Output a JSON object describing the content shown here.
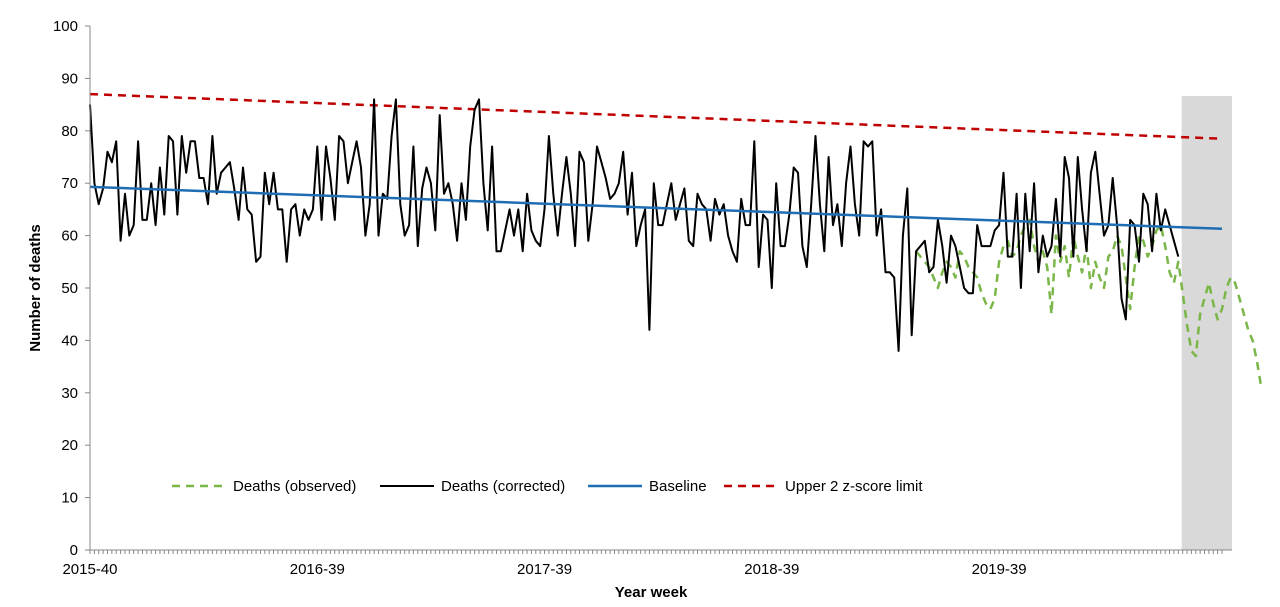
{
  "chart_data": {
    "type": "line",
    "title": "",
    "xlabel": "Year week",
    "ylabel": "Number of deaths",
    "ylim": [
      0,
      100
    ],
    "yticks": [
      0,
      10,
      20,
      30,
      40,
      50,
      60,
      70,
      80,
      90,
      100
    ],
    "xlim": [
      0,
      259
    ],
    "x_tick_labels": [
      {
        "index": 0,
        "label": "2015-40"
      },
      {
        "index": 52,
        "label": "2016-39"
      },
      {
        "index": 104,
        "label": "2017-39"
      },
      {
        "index": 156,
        "label": "2018-39"
      },
      {
        "index": 208,
        "label": "2019-39"
      }
    ],
    "grid": false,
    "legend_position": "bottom-left",
    "shaded_region": {
      "from_index": 250,
      "to_index": 259,
      "color": "#d9d9d9"
    },
    "colors": {
      "observed": "#7ab648",
      "corrected": "#000000",
      "baseline": "#1f6eb4",
      "upper": "#c00000",
      "shade": "#d9d9d9"
    },
    "series": [
      {
        "name": "Deaths (observed)",
        "style": "dashed",
        "x_start": 189,
        "values": [
          57,
          56,
          55,
          54,
          52,
          50,
          53,
          55,
          54,
          52,
          57,
          56,
          54,
          53,
          52,
          49,
          47,
          46,
          48,
          55,
          58,
          59,
          56,
          57,
          60,
          62,
          63,
          58,
          55,
          57,
          54,
          45,
          60,
          55,
          58,
          52,
          60,
          56,
          53,
          58,
          50,
          55,
          52,
          50,
          56,
          57,
          60,
          58,
          52,
          46,
          54,
          60,
          59,
          56,
          58,
          61,
          62,
          58,
          53,
          51,
          55,
          49,
          43,
          38,
          37,
          45,
          48,
          51,
          47,
          44,
          46,
          50,
          52,
          51,
          48,
          45,
          42,
          40,
          36,
          31
        ]
      },
      {
        "name": "Deaths (corrected)",
        "style": "solid",
        "x_start": 0,
        "values": [
          85,
          70,
          66,
          69,
          76,
          74,
          78,
          59,
          68,
          60,
          62,
          78,
          63,
          63,
          70,
          62,
          73,
          64,
          79,
          78,
          64,
          79,
          72,
          78,
          78,
          71,
          71,
          66,
          79,
          68,
          72,
          73,
          74,
          69,
          63,
          73,
          65,
          64,
          55,
          56,
          72,
          66,
          72,
          65,
          65,
          55,
          65,
          66,
          60,
          65,
          63,
          65,
          77,
          63,
          77,
          71,
          63,
          79,
          78,
          70,
          74,
          78,
          73,
          60,
          66,
          86,
          60,
          68,
          67,
          79,
          86,
          66,
          60,
          62,
          77,
          58,
          69,
          73,
          70,
          61,
          83,
          68,
          70,
          66,
          59,
          70,
          63,
          77,
          84,
          86,
          70,
          61,
          77,
          57,
          57,
          61,
          65,
          60,
          65,
          57,
          68,
          61,
          59,
          58,
          65,
          79,
          68,
          60,
          68,
          75,
          68,
          58,
          76,
          74,
          59,
          66,
          77,
          74,
          71,
          67,
          68,
          70,
          76,
          64,
          72,
          58,
          62,
          65,
          42,
          70,
          62,
          62,
          66,
          70,
          63,
          66,
          69,
          59,
          58,
          68,
          66,
          65,
          59,
          67,
          64,
          66,
          60,
          57,
          55,
          67,
          62,
          62,
          78,
          54,
          64,
          63,
          50,
          70,
          58,
          58,
          64,
          73,
          72,
          58,
          54,
          66,
          79,
          66,
          57,
          75,
          62,
          66,
          58,
          70,
          77,
          66,
          60,
          78,
          77,
          78,
          60,
          65,
          53,
          53,
          52,
          38,
          60,
          69,
          41,
          57,
          58,
          59,
          53,
          54,
          63,
          58,
          51,
          60,
          58,
          54,
          50,
          49,
          49,
          62,
          58,
          58,
          58,
          61,
          62,
          72,
          56,
          56,
          68,
          50,
          68,
          57,
          70,
          53,
          60,
          56,
          58,
          67,
          56,
          75,
          71,
          56,
          75,
          65,
          57,
          72,
          76,
          68,
          60,
          62,
          71,
          62,
          48,
          44,
          63,
          62,
          55,
          68,
          66,
          57,
          68,
          61,
          65,
          62,
          59,
          56
        ]
      },
      {
        "name": "Baseline",
        "style": "solid",
        "start": 69.3,
        "end": 61.3
      },
      {
        "name": "Upper 2 z-score limit",
        "style": "dashed",
        "start": 87.0,
        "end": 78.5
      }
    ]
  }
}
